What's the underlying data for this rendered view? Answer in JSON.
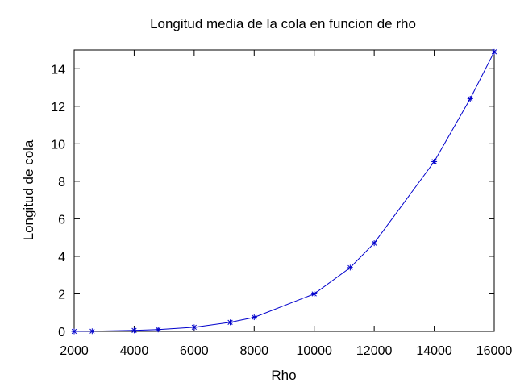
{
  "chart_data": {
    "type": "line",
    "title": "Longitud media de la cola en funcion de rho",
    "xlabel": "Rho",
    "ylabel": "Longitud de cola",
    "xlim": [
      2000,
      16000
    ],
    "ylim": [
      0,
      15
    ],
    "xticks": [
      "2000",
      "4000",
      "6000",
      "8000",
      "10000",
      "12000",
      "14000",
      "16000"
    ],
    "yticks": [
      "0",
      "2",
      "4",
      "6",
      "8",
      "10",
      "12",
      "14"
    ],
    "grid": false,
    "legend": "none",
    "marker": "asterisk",
    "color": "#0000cc",
    "series": [
      {
        "x": [
          2000,
          2600,
          4000,
          4800,
          6000,
          7200,
          8000,
          10000,
          11200,
          12000,
          14000,
          15200,
          16000
        ],
        "y": [
          0.0,
          0.01,
          0.05,
          0.1,
          0.22,
          0.48,
          0.75,
          2.0,
          3.4,
          4.7,
          9.05,
          12.4,
          14.9
        ]
      }
    ]
  }
}
